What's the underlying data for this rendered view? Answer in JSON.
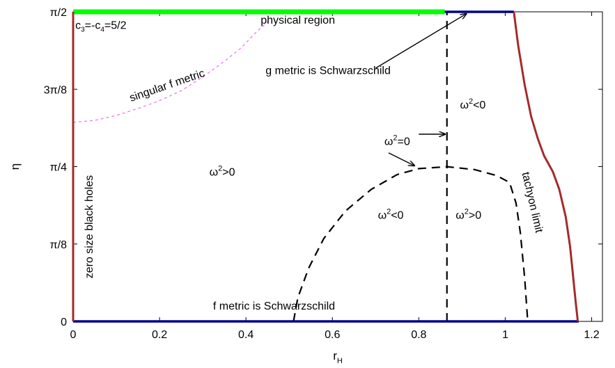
{
  "chart_data": {
    "type": "line",
    "title": "",
    "xlabel": "r",
    "xlabel_sub": "H",
    "ylabel": "η",
    "xlim": [
      0,
      1.225
    ],
    "ylim": [
      0,
      1.5708
    ],
    "grid": false,
    "xticks": [
      {
        "value": 0,
        "label": "0"
      },
      {
        "value": 0.2,
        "label": "0.2"
      },
      {
        "value": 0.4,
        "label": "0.4"
      },
      {
        "value": 0.6,
        "label": "0.6"
      },
      {
        "value": 0.8,
        "label": "0.8"
      },
      {
        "value": 1.0,
        "label": "1"
      },
      {
        "value": 1.2,
        "label": "1.2"
      }
    ],
    "yticks": [
      {
        "value": 0,
        "label": "0"
      },
      {
        "value": 0.3927,
        "label": "π/8"
      },
      {
        "value": 0.7854,
        "label": "π/4"
      },
      {
        "value": 1.1781,
        "label": "3π/8"
      },
      {
        "value": 1.5708,
        "label": "π/2"
      }
    ],
    "series": [
      {
        "key": "f-metric-schwarzschild",
        "color": "#00008b",
        "style": "solid",
        "width": 3.5,
        "x": [
          0,
          1.17
        ],
        "y": [
          0,
          0
        ]
      },
      {
        "key": "g-metric-schwarzschild",
        "color": "#00008b",
        "style": "solid",
        "width": 3.5,
        "x": [
          0,
          1.02
        ],
        "y": [
          1.5708,
          1.5708
        ]
      },
      {
        "key": "physical-region",
        "color": "#00ff00",
        "style": "solid",
        "width": 7,
        "x": [
          0,
          0.86
        ],
        "y": [
          1.5708,
          1.5708
        ]
      },
      {
        "key": "zero-size",
        "color": "#a52a2a",
        "style": "solid",
        "width": 3,
        "x": [
          0,
          0
        ],
        "y": [
          0,
          1.5708
        ]
      },
      {
        "key": "tachyon-limit",
        "color": "#a52a2a",
        "style": "solid",
        "width": 3,
        "x": [
          1.02,
          1.03,
          1.045,
          1.06,
          1.075,
          1.09,
          1.11,
          1.125,
          1.14,
          1.15,
          1.157,
          1.163,
          1.168
        ],
        "y": [
          1.5708,
          1.4,
          1.2,
          1.04,
          0.93,
          0.84,
          0.76,
          0.67,
          0.53,
          0.38,
          0.23,
          0.1,
          0.0
        ]
      },
      {
        "key": "vertical-omega-zero",
        "color": "#000000",
        "style": "dashed",
        "width": 2.2,
        "x": [
          0.865,
          0.865
        ],
        "y": [
          0,
          1.5708
        ]
      },
      {
        "key": "omega-zero-curve",
        "color": "#000000",
        "style": "dashed",
        "width": 2.2,
        "x": [
          0.51,
          0.52,
          0.545,
          0.58,
          0.63,
          0.69,
          0.75,
          0.8,
          0.865,
          0.93,
          0.98,
          1.01,
          1.025,
          1.035,
          1.045,
          1.052
        ],
        "y": [
          0,
          0.12,
          0.27,
          0.42,
          0.56,
          0.67,
          0.745,
          0.775,
          0.785,
          0.77,
          0.74,
          0.705,
          0.6,
          0.45,
          0.22,
          0.0
        ]
      },
      {
        "key": "singular-f-metric",
        "color": "#ee82ee",
        "style": "dotted",
        "width": 1.4,
        "x": [
          0,
          0.05,
          0.1,
          0.15,
          0.2,
          0.25,
          0.3,
          0.35,
          0.39,
          0.42,
          0.445,
          0.46
        ],
        "y": [
          1.01,
          1.02,
          1.045,
          1.08,
          1.12,
          1.17,
          1.24,
          1.32,
          1.39,
          1.46,
          1.51,
          1.54
        ]
      }
    ],
    "annotations": [
      {
        "key": "physical-region",
        "text": "physical region",
        "x": 0.52,
        "y": 1.51,
        "rotate": 0,
        "anchor": "middle"
      },
      {
        "key": "couplings",
        "text": "c",
        "x": 0.005,
        "y": 1.485,
        "rotate": 0,
        "anchor": "start"
      },
      {
        "key": "g-metric",
        "text": "g metric is Schwarzschild",
        "x": 0.59,
        "y": 1.255,
        "rotate": 0,
        "anchor": "middle"
      },
      {
        "key": "f-metric",
        "text": "f metric is Schwarzschild",
        "x": 0.465,
        "y": 0.06,
        "rotate": 0,
        "anchor": "middle"
      },
      {
        "key": "singular-f",
        "text": "singular f metric",
        "x": 0.22,
        "y": 1.18,
        "rotate": -19,
        "anchor": "middle"
      },
      {
        "key": "zero-size",
        "text": "zero size black holes",
        "x": 0.045,
        "y": 0.48,
        "rotate": -90,
        "anchor": "middle"
      },
      {
        "key": "tachyon",
        "text": "tachyon limit",
        "x": 1.055,
        "y": 0.6,
        "rotate": 77,
        "anchor": "middle"
      }
    ],
    "annotation_texts": {
      "couplings_main": "c",
      "couplings_sub1": "3",
      "couplings_mid": "=-c",
      "couplings_sub2": "4",
      "couplings_end": "=5/2",
      "omega": "ω",
      "sup2": "2",
      "lt0": "<0",
      "gt0": ">0",
      "eq0": "=0"
    },
    "omega_labels": [
      {
        "key": "omega-lt0-upper",
        "x": 0.925,
        "y": 1.08,
        "rel": "<0"
      },
      {
        "key": "omega-eq0",
        "x": 0.75,
        "y": 0.895,
        "rel": "=0"
      },
      {
        "key": "omega-gt0-left",
        "x": 0.345,
        "y": 0.74,
        "rel": ">0"
      },
      {
        "key": "omega-lt0-lower",
        "x": 0.735,
        "y": 0.52,
        "rel": "<0"
      },
      {
        "key": "omega-gt0-right",
        "x": 0.915,
        "y": 0.52,
        "rel": ">0"
      }
    ],
    "arrows": [
      {
        "key": "arrow-g-metric",
        "x1": 0.7,
        "y1": 1.285,
        "x2": 0.91,
        "y2": 1.5608
      },
      {
        "key": "arrow-omega-eq0-vertical",
        "x1": 0.8,
        "y1": 0.95,
        "x2": 0.861,
        "y2": 0.95
      },
      {
        "key": "arrow-omega-eq0-curve",
        "x1": 0.73,
        "y1": 0.855,
        "x2": 0.79,
        "y2": 0.79
      }
    ]
  }
}
